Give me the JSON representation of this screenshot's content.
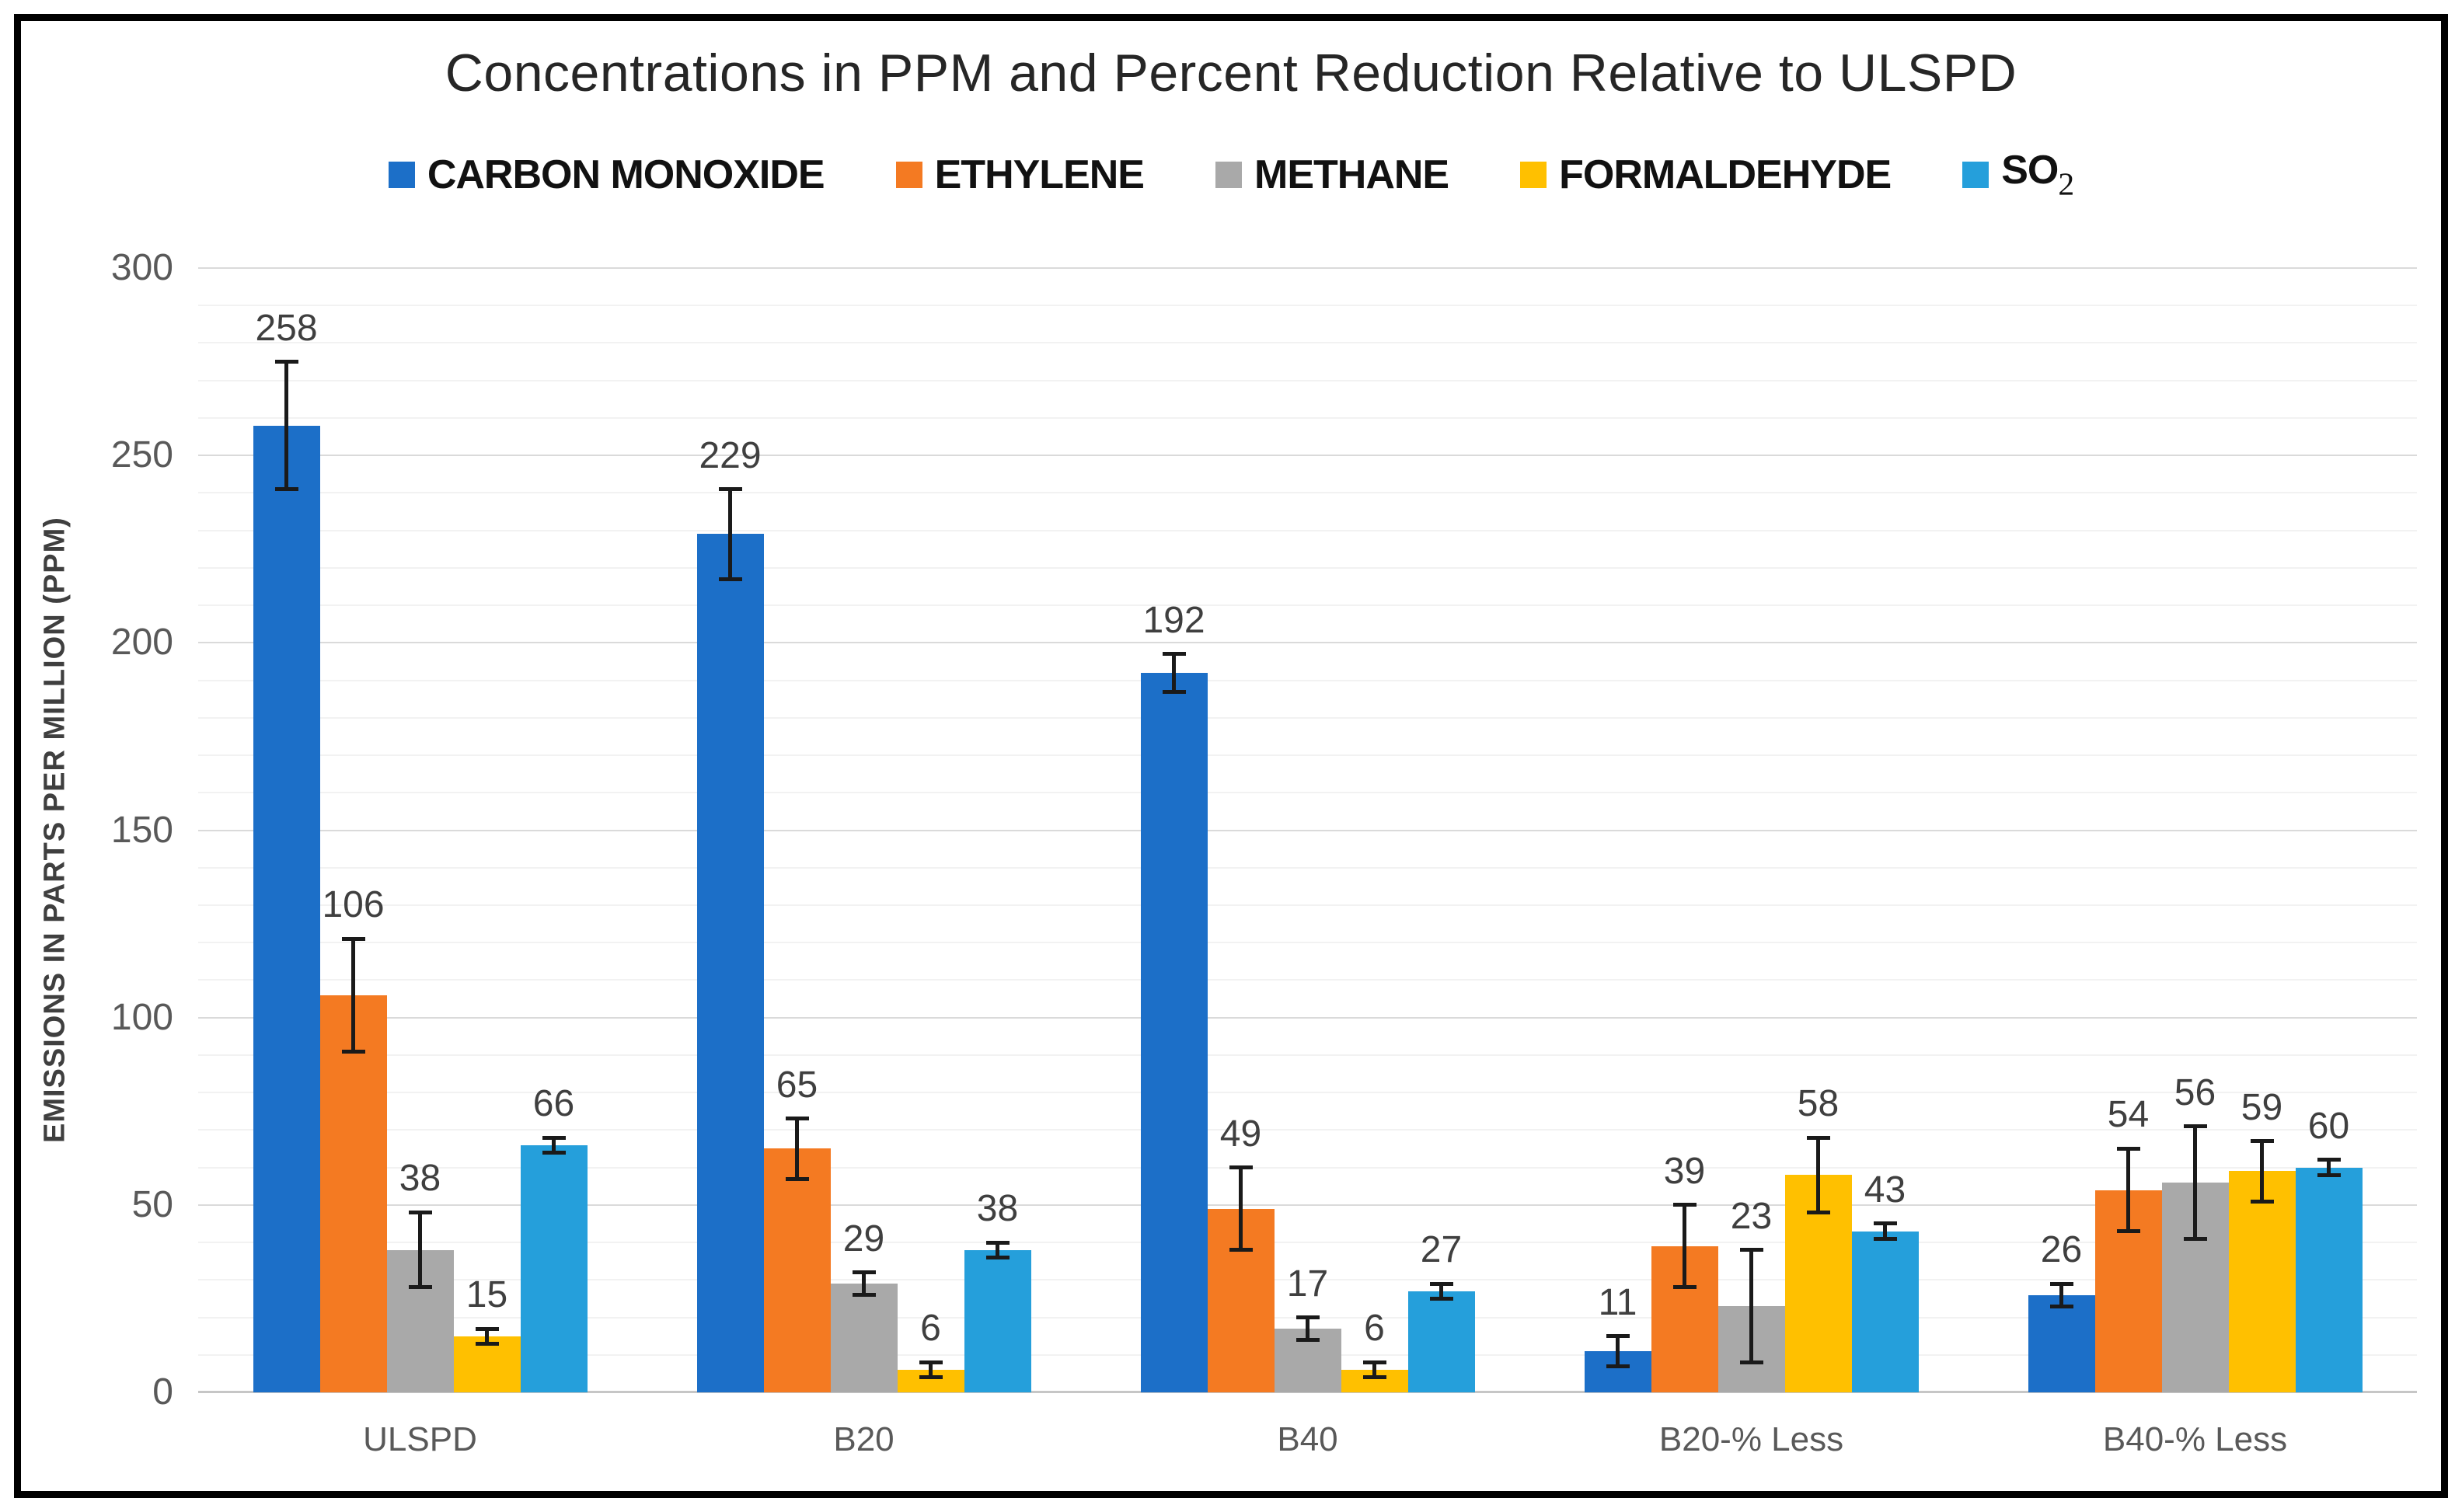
{
  "window": {
    "background": "#ffffff",
    "border_color": "#000000"
  },
  "chart_data": {
    "type": "bar",
    "title": "Concentrations in PPM and Percent Reduction Relative to ULSPD",
    "ylabel": "EMISSIONS IN PARTS PER MILLION (PPM)",
    "xlabel": "",
    "categories": [
      "ULSPD",
      "B20",
      "B40",
      "B20-% Less",
      "B40-% Less"
    ],
    "series": [
      {
        "name": "CARBON MONOXIDE",
        "legend": "CARBON MONOXIDE",
        "legend_sub": "",
        "color": "#1c6fc8",
        "values": [
          258,
          229,
          192,
          11,
          26
        ],
        "errors": [
          17,
          12,
          5,
          4,
          3
        ]
      },
      {
        "name": "ETHYLENE",
        "legend": "ETHYLENE",
        "legend_sub": "",
        "color": "#f47a22",
        "values": [
          106,
          65,
          49,
          39,
          54
        ],
        "errors": [
          15,
          8,
          11,
          11,
          11
        ]
      },
      {
        "name": "METHANE",
        "legend": "METHANE",
        "legend_sub": "",
        "color": "#a9a9a9",
        "values": [
          38,
          29,
          17,
          23,
          56
        ],
        "errors": [
          10,
          3,
          3,
          15,
          15
        ]
      },
      {
        "name": "FORMALDEHYDE",
        "legend": "FORMALDEHYDE",
        "legend_sub": "",
        "color": "#ffc000",
        "values": [
          15,
          6,
          6,
          58,
          59
        ],
        "errors": [
          2,
          2,
          2,
          10,
          8
        ]
      },
      {
        "name": "SO2",
        "legend": "SO",
        "legend_sub": "2",
        "color": "#259fdb",
        "values": [
          66,
          38,
          27,
          43,
          60
        ],
        "errors": [
          2,
          2,
          2,
          2,
          2
        ]
      }
    ],
    "ylim": [
      0,
      300
    ],
    "ytick_step": 50,
    "minor_gridline_step": 10,
    "yticks": [
      0,
      50,
      100,
      150,
      200,
      250,
      300
    ],
    "grid": true,
    "error_bars": true,
    "legend_position": "top",
    "data_labels": "above error bars"
  }
}
